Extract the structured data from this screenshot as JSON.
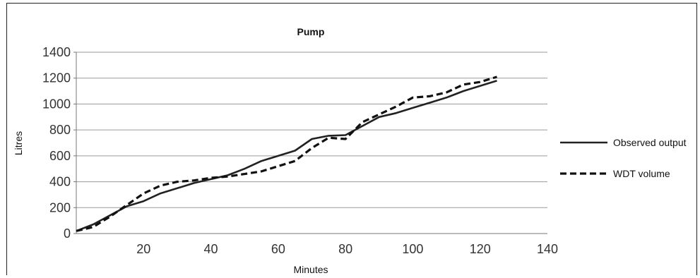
{
  "chart_data": {
    "type": "line",
    "title": "Pump",
    "xlabel": "Minutes",
    "ylabel": "Litres",
    "xlim": [
      0,
      140
    ],
    "ylim": [
      0,
      1400
    ],
    "xticks": [
      20,
      40,
      60,
      80,
      100,
      120,
      140
    ],
    "yticks": [
      0,
      200,
      400,
      600,
      800,
      1000,
      1200,
      1400
    ],
    "grid": "horizontal",
    "legend_position": "right",
    "series": [
      {
        "name": "Observed output",
        "style": "solid",
        "color": "#222222",
        "x": [
          0,
          5,
          10,
          15,
          20,
          25,
          30,
          35,
          40,
          45,
          50,
          55,
          60,
          65,
          70,
          75,
          80,
          85,
          90,
          95,
          100,
          105,
          110,
          115,
          120,
          125
        ],
        "y": [
          20,
          70,
          140,
          210,
          250,
          310,
          350,
          390,
          420,
          450,
          500,
          560,
          600,
          640,
          730,
          755,
          760,
          830,
          900,
          930,
          970,
          1010,
          1050,
          1100,
          1140,
          1180
        ]
      },
      {
        "name": "WDT volume",
        "style": "dashed",
        "color": "#111111",
        "x": [
          0,
          5,
          10,
          15,
          20,
          25,
          30,
          35,
          40,
          45,
          50,
          55,
          60,
          65,
          70,
          75,
          80,
          85,
          90,
          95,
          100,
          105,
          110,
          115,
          120,
          125
        ],
        "y": [
          20,
          50,
          130,
          220,
          310,
          370,
          400,
          410,
          430,
          440,
          460,
          480,
          520,
          560,
          660,
          740,
          730,
          860,
          920,
          980,
          1050,
          1060,
          1090,
          1150,
          1170,
          1210
        ]
      }
    ]
  }
}
